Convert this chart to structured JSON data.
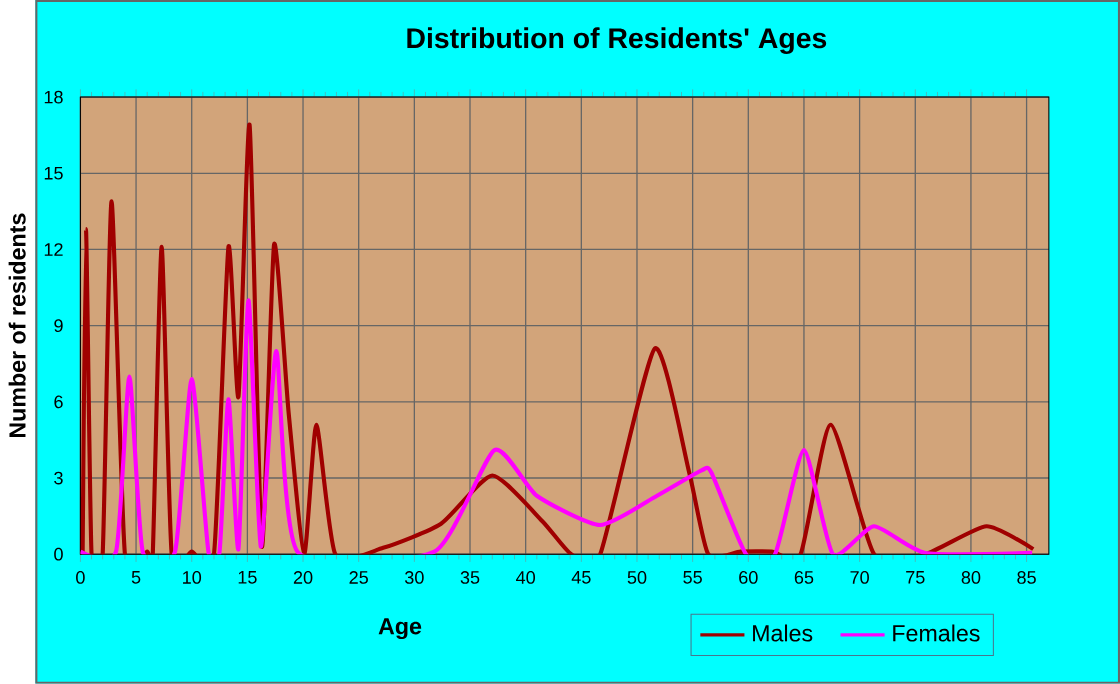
{
  "chart_data": {
    "type": "line",
    "title": "Distribution of Residents' Ages",
    "xlabel": "Age",
    "ylabel": "Number of residents",
    "xlim": [
      0,
      87
    ],
    "xticks": [
      0,
      5,
      10,
      15,
      20,
      25,
      30,
      35,
      40,
      45,
      50,
      55,
      60,
      65,
      70,
      75,
      80,
      85
    ],
    "ylim": [
      0,
      18
    ],
    "yticks": [
      0,
      3,
      6,
      9,
      12,
      15,
      18
    ],
    "grid": true,
    "legend": "bottom right",
    "marker": "none",
    "line_style": "solid",
    "series": [
      {
        "name": "Males",
        "color": "#a00000",
        "x": [
          0.2,
          0.5,
          1,
          2,
          2.8,
          4,
          6,
          6.5,
          7.3,
          8.2,
          10,
          12,
          13.3,
          14.2,
          15.2,
          16.3,
          17.4,
          18.7,
          20.1,
          21.2,
          22.9,
          27.2,
          32.4,
          37,
          41.5,
          44.1,
          46.7,
          51.6,
          54.7,
          56.4,
          59.3,
          62.1,
          64.7,
          67.4,
          71.3,
          75.9,
          81.4,
          85.6
        ],
        "values": [
          0,
          12.8,
          0,
          0,
          13.9,
          0,
          0.1,
          0,
          12.1,
          0,
          0.1,
          0,
          12.1,
          6.2,
          16.9,
          0.3,
          12.2,
          5.6,
          0,
          5.1,
          0,
          0.25,
          1.2,
          3.1,
          1.3,
          0,
          0,
          8.1,
          3.2,
          0,
          0.1,
          0.1,
          0,
          5.1,
          0,
          0,
          1.1,
          0.2
        ]
      },
      {
        "name": "Females",
        "color": "#ff00ff",
        "x": [
          0,
          3.2,
          4.4,
          5.6,
          8.5,
          10,
          11.5,
          12.5,
          13.3,
          14.2,
          15.1,
          16.2,
          17.6,
          19.5,
          31.8,
          37.2,
          41,
          46.7,
          51.8,
          55.8,
          56.7,
          59.8,
          62.4,
          65,
          67.6,
          71.3,
          75.9,
          85.5
        ],
        "values": [
          0.1,
          0.1,
          7,
          0.1,
          0.1,
          6.9,
          0.1,
          0.1,
          6.1,
          0.2,
          10,
          0.3,
          8,
          0.1,
          0.1,
          4.1,
          2.3,
          1.15,
          2.3,
          3.3,
          3.2,
          0,
          0,
          4.1,
          0,
          1.1,
          0.05,
          0.05
        ]
      }
    ]
  }
}
